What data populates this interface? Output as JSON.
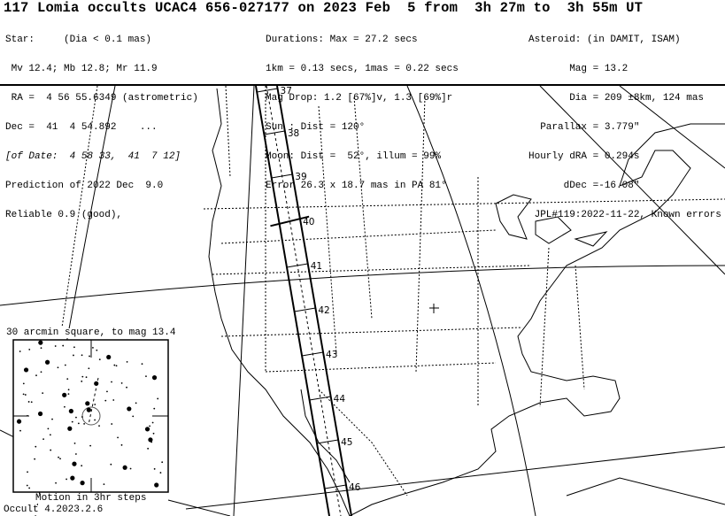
{
  "title": "117 Lomia occults UCAC4 656-027177 on 2023 Feb  5 from  3h 27m to  3h 55m UT",
  "star": {
    "lines": [
      "Star:     (Dia < 0.1 mas)",
      " Mv 12.4; Mb 12.8; Mr 11.9",
      " RA =  4 56 55.6349 (astrometric)",
      "Dec =  41  4 54.892    ...",
      "[of Date:  4 58 33,  41  7 12]",
      "Prediction of 2022 Dec  9.0",
      "Reliable 0.9 (good),"
    ]
  },
  "event": {
    "lines": [
      "Durations: Max = 27.2 secs",
      "1km = 0.13 secs, 1mas = 0.22 secs",
      "Mag Drop: 1.2 [67%]v, 1.3 [69%]r",
      "Sun : Dist = 120°",
      "Moon: Dist =  52°, illum = 99%",
      "Error 26.3 x 18.7 mas in PA 81°"
    ]
  },
  "asteroid": {
    "lines": [
      "Asteroid: (in DAMIT, ISAM)",
      "       Mag = 13.2",
      "       Dia = 209 ±8km, 124 mas",
      "  Parallax = 3.779\"",
      "Hourly dRA = 0.294s",
      "      dDec =-16.08\"",
      " JPL#119:2022-11-22, Known errors"
    ]
  },
  "map": {
    "minute_labels": [
      "37",
      "38",
      "39",
      "40",
      "41",
      "42",
      "43",
      "44",
      "45",
      "46"
    ],
    "path_color": "#000000"
  },
  "inset": {
    "caption": "30 arcmin square, to mag 13.4",
    "motion_note": "Motion in 3hr steps"
  },
  "footer": {
    "version": "Occult 4.2023.2.6"
  }
}
